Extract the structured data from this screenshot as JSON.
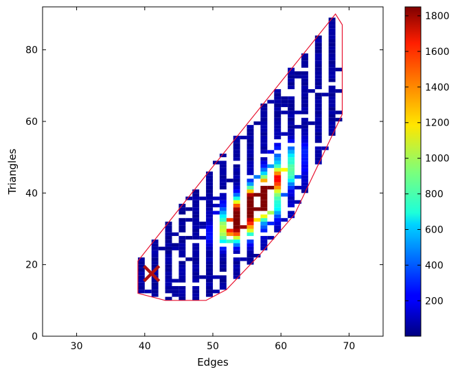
{
  "chart_data": {
    "type": "heatmap",
    "title": "",
    "xlabel": "Edges",
    "ylabel": "Triangles",
    "xlim": [
      25,
      75
    ],
    "ylim": [
      0,
      92
    ],
    "xticks": [
      30,
      40,
      50,
      60,
      70
    ],
    "yticks": [
      0,
      20,
      40,
      60,
      80
    ],
    "grid": false,
    "colormap": "jet",
    "colorbar": {
      "range": [
        1,
        1850
      ],
      "ticks": [
        200,
        400,
        600,
        800,
        1000,
        1200,
        1400,
        1600,
        1800
      ]
    },
    "bin_size": {
      "x": 1,
      "y": 1
    },
    "cells_note_skip": true,
    "hotspots": [
      {
        "x": 57,
        "y": 40,
        "count": 1850
      },
      {
        "x": 56,
        "y": 38,
        "count": 1750
      },
      {
        "x": 55,
        "y": 36,
        "count": 1650
      },
      {
        "x": 54,
        "y": 35,
        "count": 1550
      },
      {
        "x": 53,
        "y": 33,
        "count": 1450
      },
      {
        "x": 58,
        "y": 42,
        "count": 1400
      },
      {
        "x": 59,
        "y": 44,
        "count": 1300
      },
      {
        "x": 56,
        "y": 36,
        "count": 1250
      },
      {
        "x": 54,
        "y": 31,
        "count": 1200
      },
      {
        "x": 52,
        "y": 30,
        "count": 1150
      },
      {
        "x": 53,
        "y": 28,
        "count": 1100
      },
      {
        "x": 60,
        "y": 45,
        "count": 900
      },
      {
        "x": 57,
        "y": 34,
        "count": 850
      },
      {
        "x": 51,
        "y": 27,
        "count": 750
      },
      {
        "x": 61,
        "y": 48,
        "count": 650
      },
      {
        "x": 60,
        "y": 50,
        "count": 550
      },
      {
        "x": 62,
        "y": 52,
        "count": 420
      },
      {
        "x": 58,
        "y": 36,
        "count": 800
      },
      {
        "x": 55,
        "y": 30,
        "count": 700
      }
    ],
    "hull": [
      [
        39,
        21
      ],
      [
        49,
        45
      ],
      [
        68,
        90
      ],
      [
        69,
        87
      ],
      [
        69,
        62
      ],
      [
        62,
        34
      ],
      [
        57,
        23
      ],
      [
        52,
        13
      ],
      [
        49,
        10
      ],
      [
        43,
        10
      ],
      [
        39,
        12
      ]
    ],
    "marker": {
      "type": "x",
      "x": 41,
      "y": 17.5,
      "color": "#b01010"
    }
  }
}
